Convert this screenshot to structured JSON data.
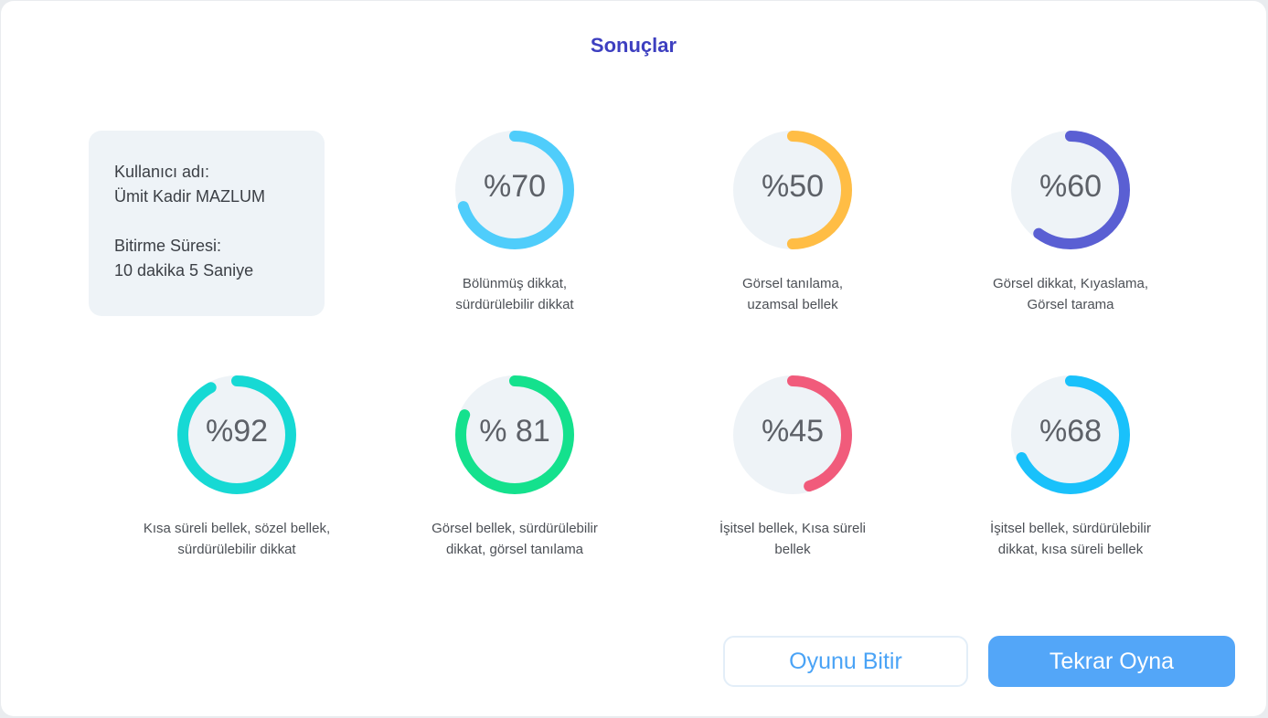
{
  "title": "Sonuçlar",
  "user": {
    "name_label": "Kullanıcı adı:",
    "name_value": "Ümit Kadir MAZLUM",
    "time_label": "Bitirme Süresi:",
    "time_value": "10 dakika 5 Saniye"
  },
  "gauges": [
    {
      "value": 70,
      "label": "%70",
      "color": "#4fcdfb",
      "desc_line1": "Bölünmüş dikkat,",
      "desc_line2": "sürdürülebilir dikkat"
    },
    {
      "value": 50,
      "label": "%50",
      "color": "#ffbd45",
      "desc_line1": "Görsel tanılama,",
      "desc_line2": "uzamsal bellek"
    },
    {
      "value": 60,
      "label": "%60",
      "color": "#5a5fd3",
      "desc_line1": "Görsel dikkat, Kıyaslama,",
      "desc_line2": "Görsel tarama"
    },
    {
      "value": 92,
      "label": "%92",
      "color": "#16d9d4",
      "desc_line1": "Kısa süreli bellek, sözel bellek,",
      "desc_line2": "sürdürülebilir dikkat"
    },
    {
      "value": 81,
      "label": "% 81",
      "color": "#14e18d",
      "desc_line1": "Görsel bellek, sürdürülebilir",
      "desc_line2": "dikkat, görsel tanılama"
    },
    {
      "value": 45,
      "label": "%45",
      "color": "#f15b7b",
      "desc_line1": "İşitsel bellek, Kısa süreli",
      "desc_line2": "bellek"
    },
    {
      "value": 68,
      "label": "%68",
      "color": "#19c1fb",
      "desc_line1": "İşitsel bellek, sürdürülebilir",
      "desc_line2": "dikkat, kısa süreli bellek"
    }
  ],
  "buttons": {
    "end_label": "Oyunu Bitir",
    "replay_label": "Tekrar Oyna"
  }
}
